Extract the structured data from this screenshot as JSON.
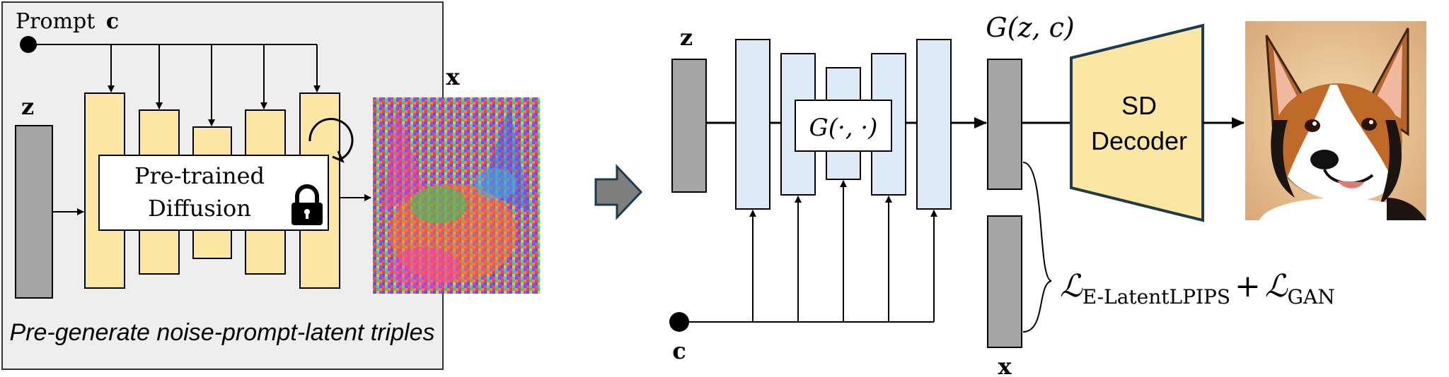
{
  "left_panel": {
    "prompt_label": "Prompt",
    "prompt_symbol": "c",
    "noise_symbol": "z",
    "latent_symbol": "x",
    "model_label_line1": "Pre-trained",
    "model_label_line2": "Diffusion",
    "caption": "Pre-generate noise-prompt-latent triples",
    "lock_icon": "lock-icon",
    "refresh_icon": "rotate-arrow-icon"
  },
  "right_panel": {
    "noise_symbol": "z",
    "prompt_symbol": "c",
    "generator_label": "G(·, ·)",
    "output_label": "G(z, c)",
    "target_symbol": "x",
    "decoder_line1": "SD",
    "decoder_line2": "Decoder",
    "loss_main_1": "ℒ",
    "loss_sub_1": "E-LatentLPIPS",
    "loss_plus": "+",
    "loss_main_2": "ℒ",
    "loss_sub_2": "GAN"
  },
  "colors": {
    "panel_bg": "#eeeeee",
    "unet_yellow": "#fbe7a3",
    "unet_blue": "#deebf7",
    "latent_gray": "#a6a6a6",
    "arrow_gray": "#7f7f7f",
    "decoder_yellow": "#fbe7a3"
  }
}
